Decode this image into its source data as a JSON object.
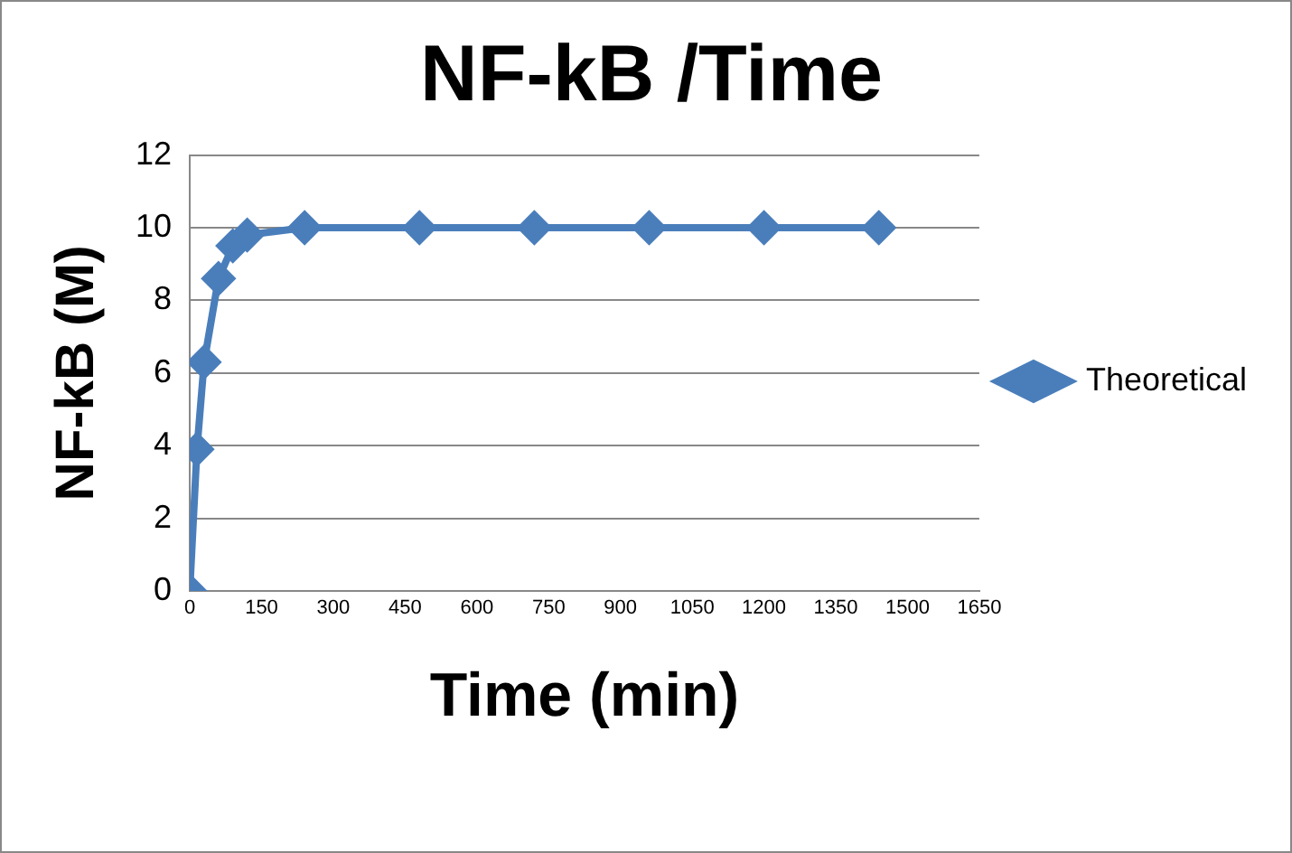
{
  "chart_data": {
    "type": "line",
    "title": "NF-kB /Time",
    "xlabel": "Time (min)",
    "ylabel": "NF-kB (M)",
    "x": [
      0,
      15,
      30,
      60,
      90,
      120,
      240,
      480,
      720,
      960,
      1200,
      1440
    ],
    "series": [
      {
        "name": "Theoretical",
        "color": "#4a7ebb",
        "values": [
          0,
          3.9,
          6.3,
          8.6,
          9.5,
          9.8,
          10,
          10,
          10,
          10,
          10,
          10
        ]
      }
    ],
    "xlim": [
      0,
      1650
    ],
    "xticks": [
      0,
      150,
      300,
      450,
      600,
      750,
      900,
      1050,
      1200,
      1350,
      1500,
      1650
    ],
    "ylim": [
      0,
      12
    ],
    "yticks": [
      0,
      2,
      4,
      6,
      8,
      10,
      12
    ],
    "grid": "y",
    "legend": "right",
    "marker": "diamond",
    "line_style": "solid"
  }
}
